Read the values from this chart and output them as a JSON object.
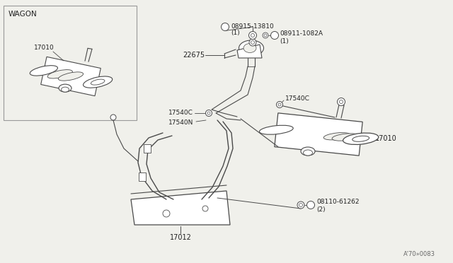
{
  "bg_color": "#f0f0eb",
  "line_color": "#4a4a4a",
  "text_color": "#222222",
  "parts": {
    "wagon_label": "WAGON",
    "part_17010": "17010",
    "part_17010b": "17010",
    "part_17012": "17012",
    "part_22675": "22675",
    "part_17540C_left": "17540C",
    "part_17540C_right": "17540C",
    "part_17540N": "17540N",
    "part_08915": "08915-13810",
    "part_08915_qty": "(1)",
    "part_08911": "08911-1082A",
    "part_08911_qty": "(1)",
    "part_08110": "08110-61262",
    "part_08110_qty": "(2)",
    "marker_W": "W",
    "marker_N": "N",
    "marker_B": "B",
    "diagram_code": "A’ 70» 0083"
  }
}
